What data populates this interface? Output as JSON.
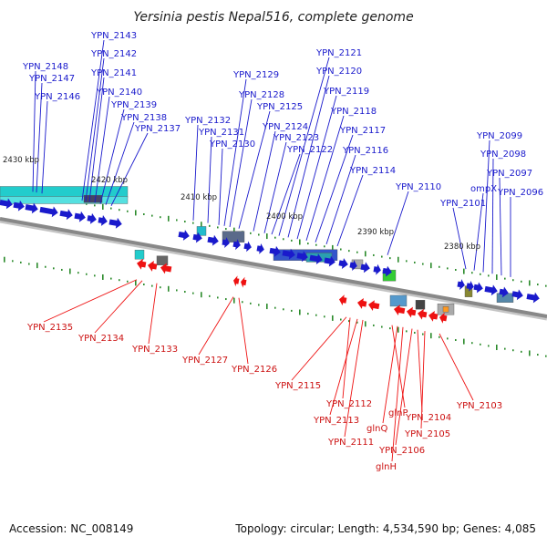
{
  "title": "Yersinia pestis Nepal516, complete genome",
  "footer": {
    "accession": "Accession: NC_008149",
    "topology": "Topology: circular; Length: 4,534,590 bp; Genes: 4,085"
  },
  "colors": {
    "forward": "#1a1acc",
    "reverse": "#ee1111",
    "backbone": "#888888",
    "tick": "#2a8a2a"
  },
  "ticks": [
    "2430 kbp",
    "2420 kbp",
    "2410 kbp",
    "2400 kbp",
    "2390 kbp",
    "2380 kbp"
  ],
  "genes_top": [
    "YPN_2148",
    "YPN_2147",
    "YPN_2146",
    "YPN_2143",
    "YPN_2142",
    "YPN_2141",
    "YPN_2140",
    "YPN_2139",
    "YPN_2138",
    "YPN_2137",
    "YPN_2132",
    "YPN_2131",
    "YPN_2130",
    "YPN_2129",
    "YPN_2128",
    "YPN_2125",
    "YPN_2124",
    "YPN_2123",
    "YPN_2122",
    "YPN_2121",
    "YPN_2120",
    "YPN_2119",
    "YPN_2118",
    "YPN_2117",
    "YPN_2116",
    "YPN_2114",
    "YPN_2110",
    "YPN_2101",
    "ompX",
    "YPN_2099",
    "YPN_2098",
    "YPN_2097",
    "YPN_2096"
  ],
  "genes_bottom": [
    "YPN_2135",
    "YPN_2134",
    "YPN_2133",
    "YPN_2127",
    "YPN_2126",
    "YPN_2115",
    "YPN_2112",
    "YPN_2113",
    "YPN_2111",
    "glnP",
    "glnQ",
    "glnH",
    "YPN_2106",
    "YPN_2104",
    "YPN_2105",
    "YPN_2103"
  ]
}
